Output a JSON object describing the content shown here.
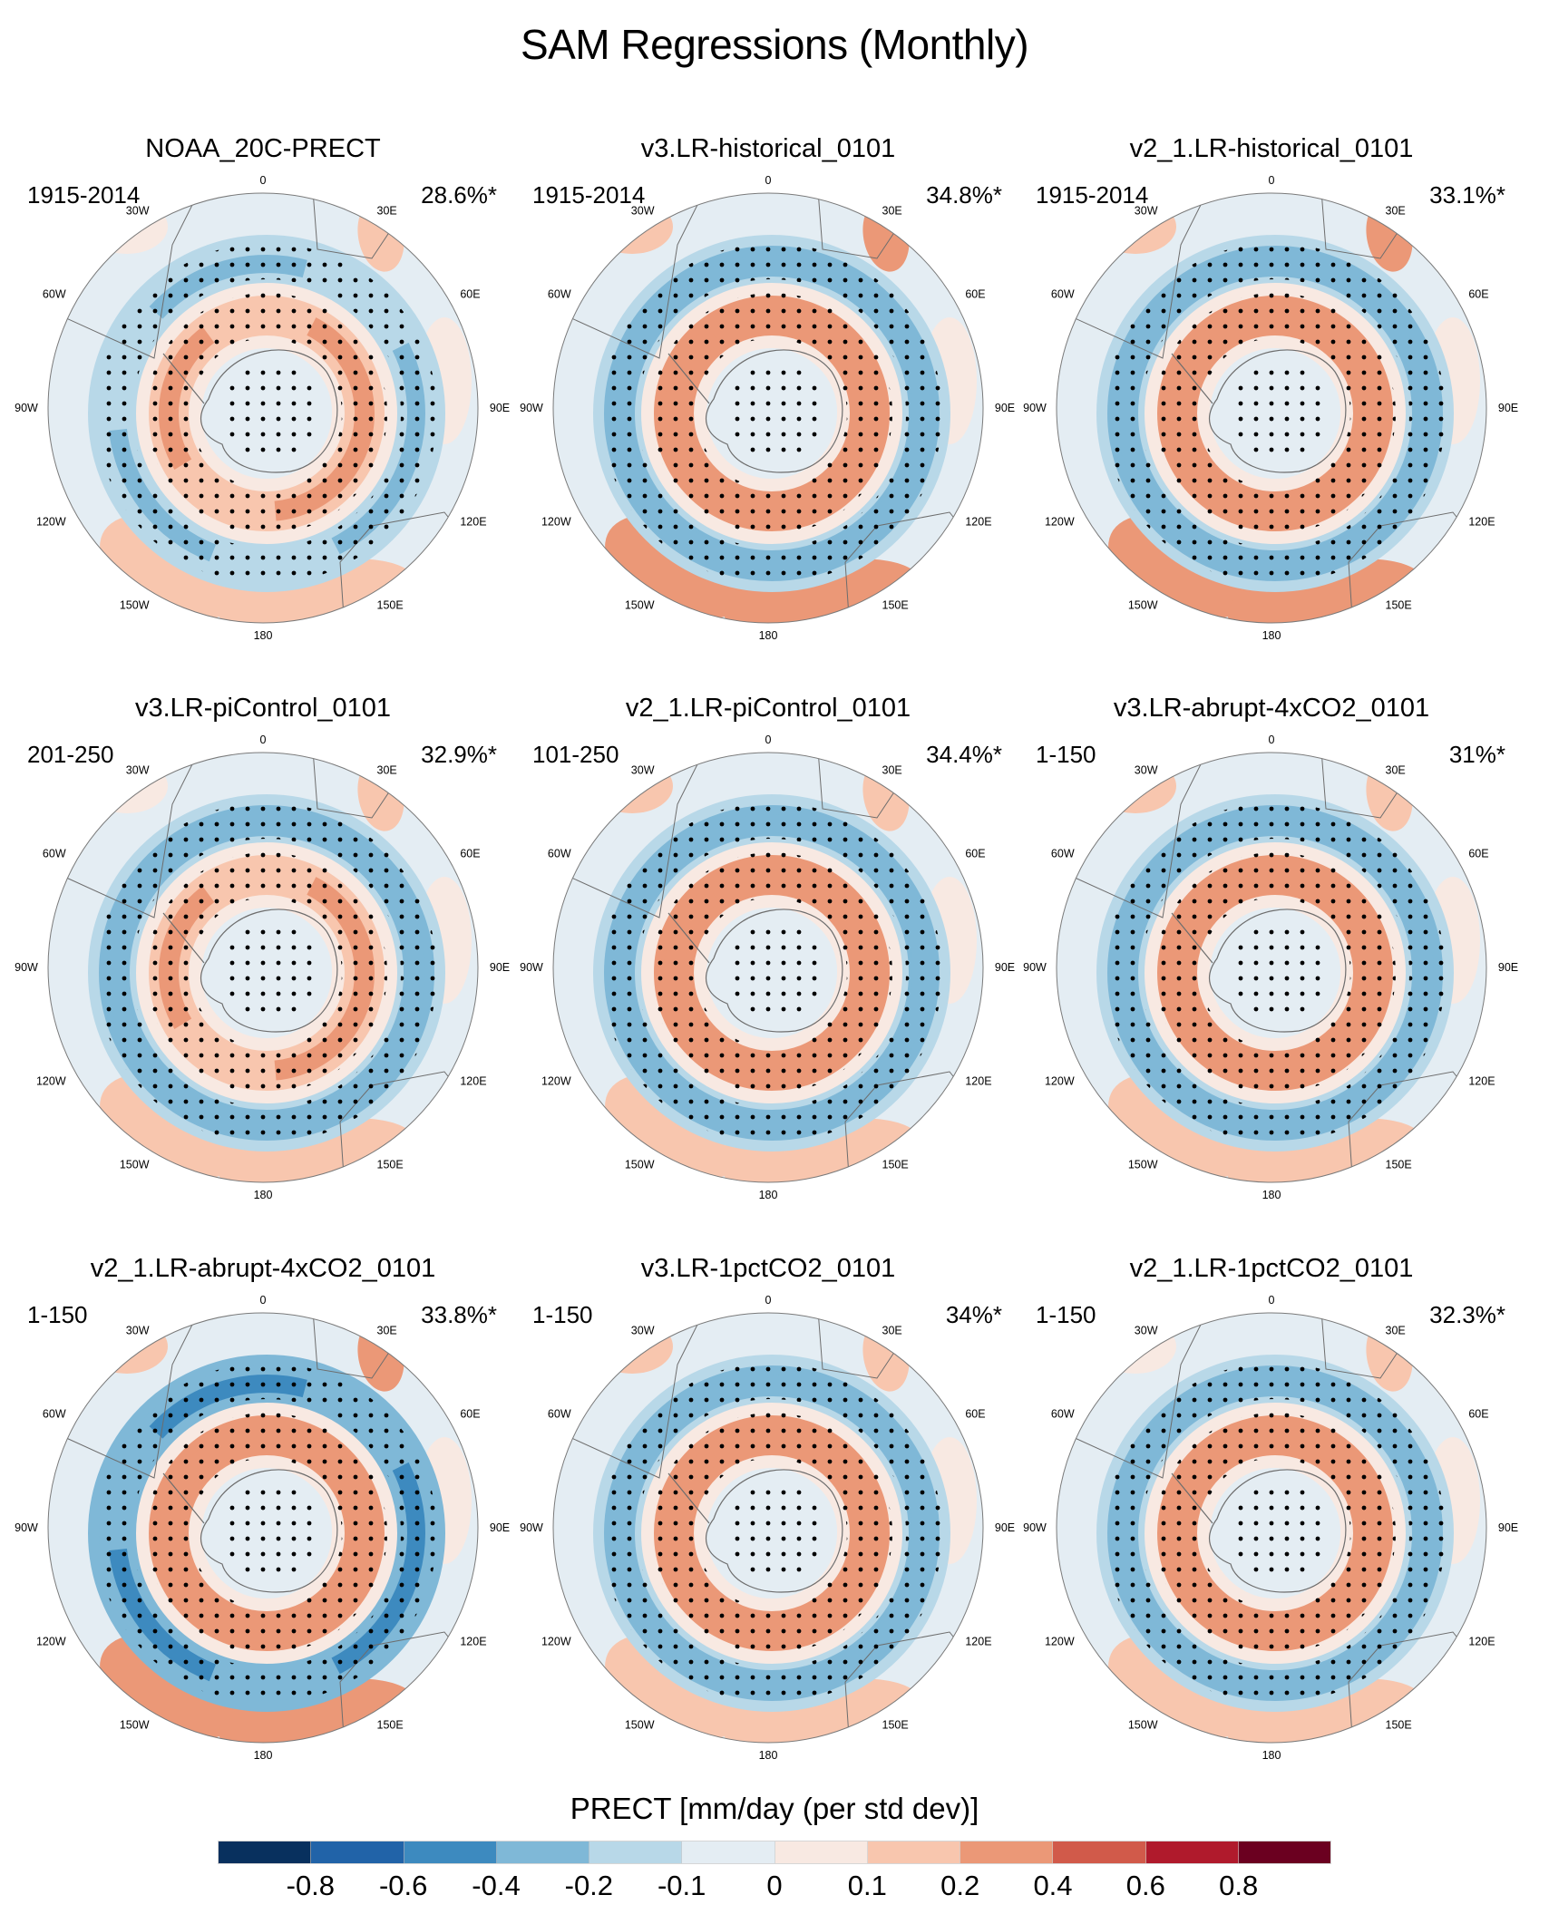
{
  "figure": {
    "title": "SAM Regressions (Monthly)"
  },
  "chart_data": {
    "type": "heatmap",
    "projection": "south-polar-stereographic",
    "title": "SAM Regressions (Monthly)",
    "variable": "PRECT",
    "units": "mm/day (per std dev)",
    "stippling": "significant regions marked with dots",
    "longitude_labels": [
      "0",
      "30E",
      "60E",
      "90E",
      "120E",
      "150E",
      "180",
      "150W",
      "120W",
      "90W",
      "60W",
      "30W"
    ],
    "panels": [
      {
        "title": "NOAA_20C-PRECT",
        "period": "1915-2014",
        "variance_explained": "28.6%*",
        "pattern": {
          "inner_ring": 0.25,
          "mid_band": -0.25,
          "outer": 0.12,
          "cap": -0.05
        }
      },
      {
        "title": "v3.LR-historical_0101",
        "period": "1915-2014",
        "variance_explained": "34.8%*",
        "pattern": {
          "inner_ring": 0.3,
          "mid_band": -0.4,
          "outer": 0.2,
          "cap": -0.05
        }
      },
      {
        "title": "v2_1.LR-historical_0101",
        "period": "1915-2014",
        "variance_explained": "33.1%*",
        "pattern": {
          "inner_ring": 0.3,
          "mid_band": -0.4,
          "outer": 0.2,
          "cap": -0.05
        }
      },
      {
        "title": "v3.LR-piControl_0101",
        "period": "201-250",
        "variance_explained": "32.9%*",
        "pattern": {
          "inner_ring": 0.25,
          "mid_band": -0.4,
          "outer": 0.1,
          "cap": -0.05
        }
      },
      {
        "title": "v2_1.LR-piControl_0101",
        "period": "101-250",
        "variance_explained": "34.4%*",
        "pattern": {
          "inner_ring": 0.3,
          "mid_band": -0.4,
          "outer": 0.15,
          "cap": -0.05
        }
      },
      {
        "title": "v3.LR-abrupt-4xCO2_0101",
        "period": "1-150",
        "variance_explained": "31%*",
        "pattern": {
          "inner_ring": 0.35,
          "mid_band": -0.4,
          "outer": 0.15,
          "cap": -0.05
        }
      },
      {
        "title": "v2_1.LR-abrupt-4xCO2_0101",
        "period": "1-150",
        "variance_explained": "33.8%*",
        "pattern": {
          "inner_ring": 0.35,
          "mid_band": -0.45,
          "outer": 0.2,
          "cap": -0.05
        }
      },
      {
        "title": "v3.LR-1pctCO2_0101",
        "period": "1-150",
        "variance_explained": "34%*",
        "pattern": {
          "inner_ring": 0.35,
          "mid_band": -0.4,
          "outer": 0.15,
          "cap": -0.05
        }
      },
      {
        "title": "v2_1.LR-1pctCO2_0101",
        "period": "1-150",
        "variance_explained": "32.3%*",
        "pattern": {
          "inner_ring": 0.3,
          "mid_band": -0.4,
          "outer": 0.12,
          "cap": -0.05
        }
      }
    ],
    "colorbar": {
      "title": "PRECT [mm/day (per std dev)]",
      "levels": [
        -0.8,
        -0.6,
        -0.4,
        -0.2,
        -0.1,
        0,
        0.1,
        0.2,
        0.4,
        0.6,
        0.8
      ],
      "tick_labels": [
        "-0.8",
        "-0.6",
        "-0.4",
        "-0.2",
        "-0.1",
        "0",
        "0.1",
        "0.2",
        "0.4",
        "0.6",
        "0.8"
      ],
      "colors": [
        "#08305e",
        "#2163a8",
        "#3d8abf",
        "#7fb8d7",
        "#b8d8e8",
        "#e4edf3",
        "#f8e9e2",
        "#f8c6ae",
        "#eb9877",
        "#d15a4a",
        "#b01a2c",
        "#6b0020"
      ]
    }
  }
}
